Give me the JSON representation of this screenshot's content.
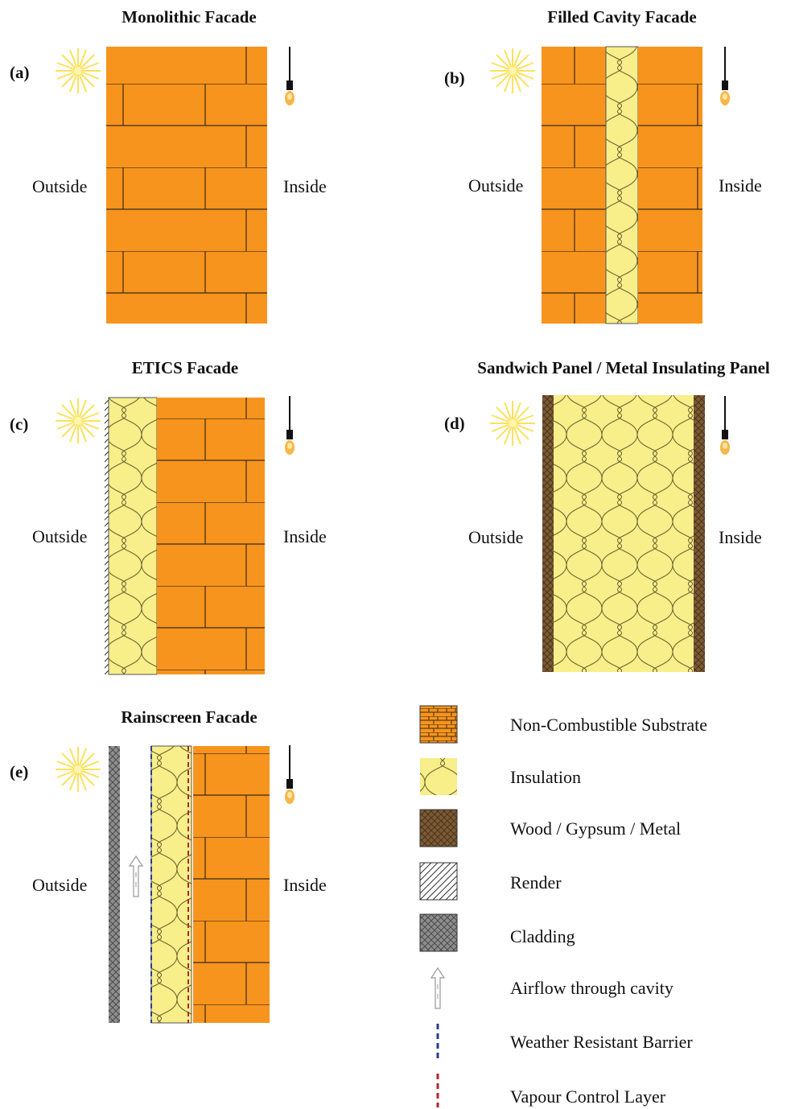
{
  "colors": {
    "brick": "#F7941D",
    "mortar": "#3a2a10",
    "insulation": "#F8EE8A",
    "wood": "#7B5A35",
    "cladding": "#8E8E8E",
    "sun": "#FFE15A",
    "wrb": "#2B3A8F",
    "vcl": "#B0272D"
  },
  "panels": {
    "a": {
      "label": "(a)",
      "title": "Monolithic Facade",
      "outside": "Outside",
      "inside": "Inside"
    },
    "b": {
      "label": "(b)",
      "title": "Filled Cavity Facade",
      "outside": "Outside",
      "inside": "Inside"
    },
    "c": {
      "label": "(c)",
      "title": "ETICS Facade",
      "outside": "Outside",
      "inside": "Inside"
    },
    "d": {
      "label": "(d)",
      "title": "Sandwich Panel / Metal Insulating Panel",
      "outside": "Outside",
      "inside": "Inside"
    },
    "e": {
      "label": "(e)",
      "title": "Rainscreen Facade",
      "outside": "Outside",
      "inside": "Inside"
    }
  },
  "legend": {
    "substrate": "Non-Combustible Substrate",
    "insulation": "Insulation",
    "wood": "Wood / Gypsum / Metal",
    "render": "Render",
    "cladding": "Cladding",
    "airflow": "Airflow through cavity",
    "wrb": "Weather Resistant Barrier",
    "vcl": "Vapour Control Layer"
  },
  "icons": {
    "sun": "sun-icon",
    "bulb": "light-bulb-icon",
    "arrow": "airflow-arrow-icon"
  }
}
